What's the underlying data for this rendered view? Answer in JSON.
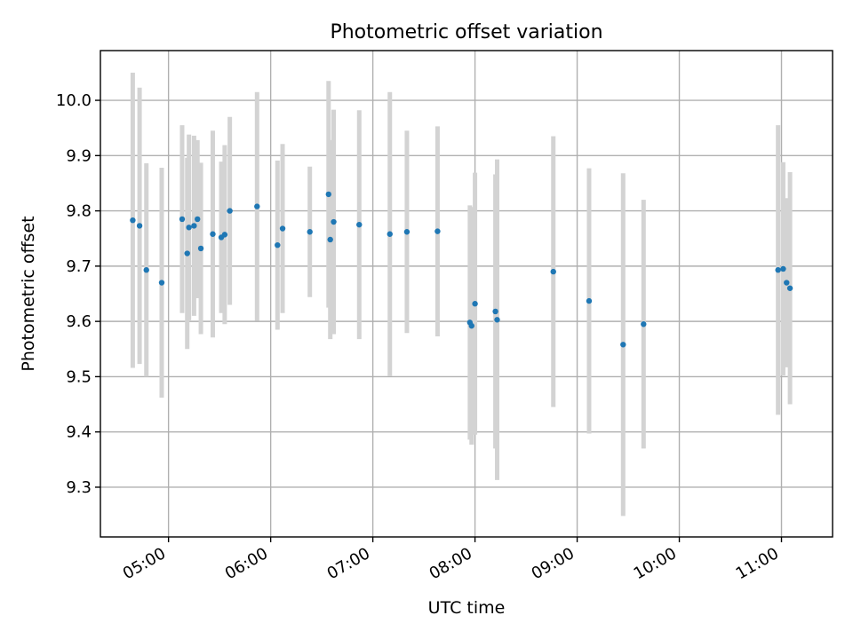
{
  "chart_data": {
    "type": "scatter",
    "title": "Photometric offset variation",
    "xlabel": "UTC time",
    "ylabel": "Photometric offset",
    "x_type": "time",
    "xlim": [
      "04:20",
      "11:30"
    ],
    "ylim": [
      9.21,
      10.09
    ],
    "x_ticks": [
      "05:00",
      "06:00",
      "07:00",
      "08:00",
      "09:00",
      "10:00",
      "11:00"
    ],
    "y_ticks": [
      9.3,
      9.4,
      9.5,
      9.6,
      9.7,
      9.8,
      9.9,
      10.0
    ],
    "y_tick_labels": [
      "9.3",
      "9.4",
      "9.5",
      "9.6",
      "9.7",
      "9.8",
      "9.9",
      "10.0"
    ],
    "grid": true,
    "marker_color": "#1f77b4",
    "errorbar_color": "#d3d3d3",
    "points": [
      {
        "x": "04:39",
        "y": 9.783,
        "err": 0.267
      },
      {
        "x": "04:43",
        "y": 9.773,
        "err": 0.25
      },
      {
        "x": "04:47",
        "y": 9.693,
        "err": 0.193
      },
      {
        "x": "04:56",
        "y": 9.67,
        "err": 0.208
      },
      {
        "x": "05:08",
        "y": 9.785,
        "err": 0.17
      },
      {
        "x": "05:11",
        "y": 9.723,
        "err": 0.173
      },
      {
        "x": "05:12",
        "y": 9.77,
        "err": 0.168
      },
      {
        "x": "05:15",
        "y": 9.773,
        "err": 0.163
      },
      {
        "x": "05:17",
        "y": 9.785,
        "err": 0.143
      },
      {
        "x": "05:19",
        "y": 9.732,
        "err": 0.155
      },
      {
        "x": "05:26",
        "y": 9.758,
        "err": 0.187
      },
      {
        "x": "05:31",
        "y": 9.752,
        "err": 0.137
      },
      {
        "x": "05:33",
        "y": 9.757,
        "err": 0.162
      },
      {
        "x": "05:36",
        "y": 9.8,
        "err": 0.17
      },
      {
        "x": "05:52",
        "y": 9.808,
        "err": 0.207
      },
      {
        "x": "06:04",
        "y": 9.738,
        "err": 0.153
      },
      {
        "x": "06:07",
        "y": 9.768,
        "err": 0.153
      },
      {
        "x": "06:23",
        "y": 9.762,
        "err": 0.118
      },
      {
        "x": "06:34",
        "y": 9.83,
        "err": 0.205
      },
      {
        "x": "06:35",
        "y": 9.748,
        "err": 0.18
      },
      {
        "x": "06:37",
        "y": 9.78,
        "err": 0.203
      },
      {
        "x": "06:52",
        "y": 9.775,
        "err": 0.207
      },
      {
        "x": "07:10",
        "y": 9.758,
        "err": 0.257
      },
      {
        "x": "07:20",
        "y": 9.762,
        "err": 0.183
      },
      {
        "x": "07:38",
        "y": 9.763,
        "err": 0.19
      },
      {
        "x": "07:57",
        "y": 9.598,
        "err": 0.212
      },
      {
        "x": "07:58",
        "y": 9.592,
        "err": 0.215
      },
      {
        "x": "08:00",
        "y": 9.632,
        "err": 0.237
      },
      {
        "x": "08:12",
        "y": 9.618,
        "err": 0.248
      },
      {
        "x": "08:13",
        "y": 9.603,
        "err": 0.29
      },
      {
        "x": "08:46",
        "y": 9.69,
        "err": 0.245
      },
      {
        "x": "09:07",
        "y": 9.637,
        "err": 0.24
      },
      {
        "x": "09:27",
        "y": 9.558,
        "err": 0.31
      },
      {
        "x": "09:39",
        "y": 9.595,
        "err": 0.225
      },
      {
        "x": "10:58",
        "y": 9.693,
        "err": 0.262
      },
      {
        "x": "11:01",
        "y": 9.695,
        "err": 0.193
      },
      {
        "x": "11:03",
        "y": 9.67,
        "err": 0.153
      },
      {
        "x": "11:05",
        "y": 9.66,
        "err": 0.21
      }
    ]
  }
}
